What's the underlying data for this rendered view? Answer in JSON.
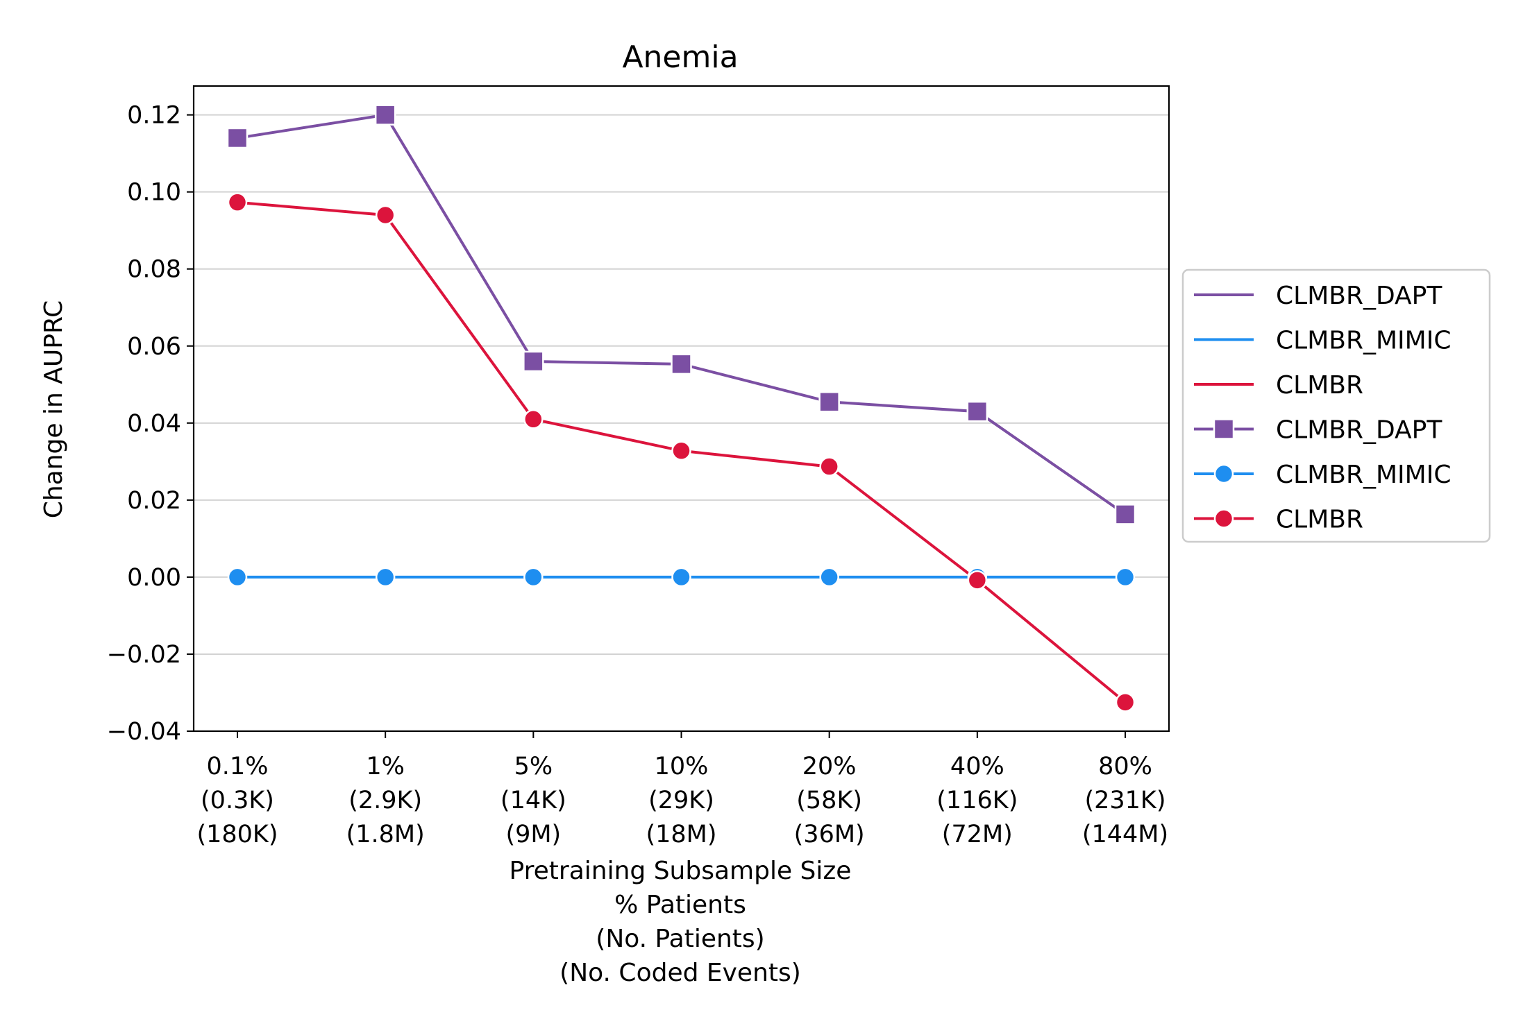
{
  "chart_data": {
    "type": "line",
    "title": "Anemia",
    "xlabel_lines": [
      "Pretraining Subsample Size",
      "% Patients",
      "(No. Patients)",
      "(No. Coded Events)"
    ],
    "ylabel": "Change in AUPRC",
    "categories": [
      [
        "0.1%",
        "(0.3K)",
        "(180K)"
      ],
      [
        "1%",
        "(2.9K)",
        "(1.8M)"
      ],
      [
        "5%",
        "(14K)",
        "(9M)"
      ],
      [
        "10%",
        "(29K)",
        "(18M)"
      ],
      [
        "20%",
        "(58K)",
        "(36M)"
      ],
      [
        "40%",
        "(116K)",
        "(72M)"
      ],
      [
        "80%",
        "(231K)",
        "(144M)"
      ]
    ],
    "ylim": [
      -0.04,
      0.1275
    ],
    "yticks": [
      -0.04,
      -0.02,
      0.0,
      0.02,
      0.04,
      0.06,
      0.08,
      0.1,
      0.12
    ],
    "ytick_labels": [
      "−0.04",
      "−0.02",
      "0.00",
      "0.02",
      "0.04",
      "0.06",
      "0.08",
      "0.10",
      "0.12"
    ],
    "grid": "horizontal",
    "legend_position": "right-outside",
    "series": [
      {
        "name": "CLMBR_DAPT",
        "color": "#7B4FA3",
        "marker": "square",
        "values": [
          0.114,
          0.12,
          0.056,
          0.0553,
          0.0455,
          0.043,
          0.0163
        ]
      },
      {
        "name": "CLMBR_MIMIC",
        "color": "#1E8EF0",
        "marker": "circle",
        "values": [
          0.0,
          0.0,
          0.0,
          0.0,
          0.0,
          0.0,
          0.0
        ]
      },
      {
        "name": "CLMBR",
        "color": "#DC143C",
        "marker": "circle",
        "values": [
          0.0973,
          0.094,
          0.041,
          0.0328,
          0.0287,
          -0.0008,
          -0.0325
        ]
      }
    ],
    "legend_entries": [
      {
        "name": "CLMBR_DAPT",
        "color": "#7B4FA3",
        "marker": "none"
      },
      {
        "name": "CLMBR_MIMIC",
        "color": "#1E8EF0",
        "marker": "none"
      },
      {
        "name": "CLMBR",
        "color": "#DC143C",
        "marker": "none"
      },
      {
        "name": "CLMBR_DAPT",
        "color": "#7B4FA3",
        "marker": "square"
      },
      {
        "name": "CLMBR_MIMIC",
        "color": "#1E8EF0",
        "marker": "circle"
      },
      {
        "name": "CLMBR",
        "color": "#DC143C",
        "marker": "circle"
      }
    ]
  }
}
